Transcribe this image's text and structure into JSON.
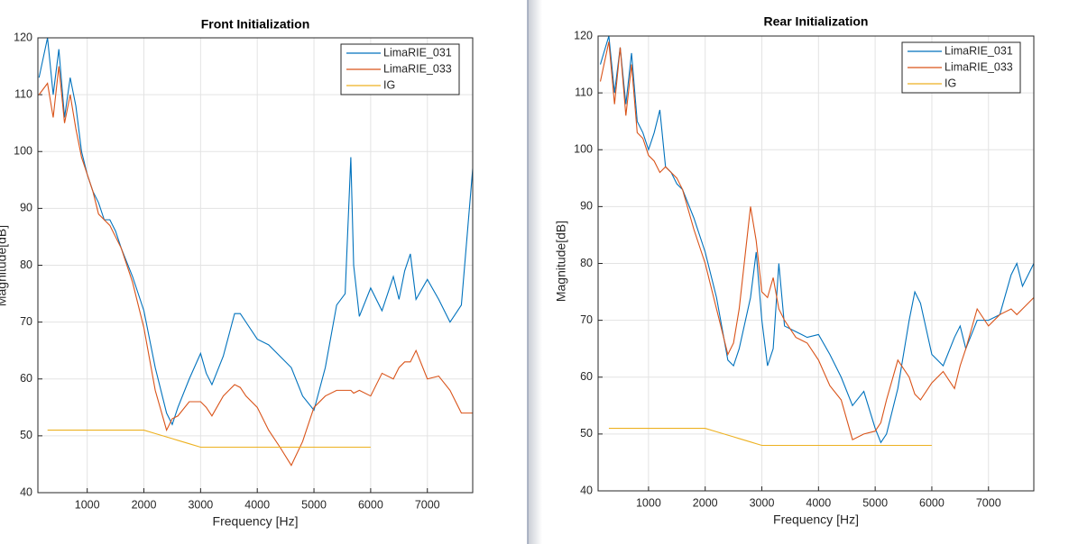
{
  "chart_data": [
    {
      "type": "line",
      "title": "Front Initialization",
      "x_label": "Frequency [Hz]",
      "y_label": "Magnitude[dB]",
      "x": [
        150,
        300,
        400,
        500,
        600,
        700,
        800,
        900,
        1000,
        1100,
        1200,
        1300,
        1400,
        1500,
        1600,
        1800,
        2000,
        2200,
        2400,
        2500,
        2600,
        2800,
        3000,
        3100,
        3200,
        3400,
        3600,
        3700,
        3800,
        4000,
        4200,
        4400,
        4600,
        4800,
        5000,
        5200,
        5400,
        5550,
        5650,
        5700,
        5800,
        6000,
        6200,
        6400,
        6500,
        6600,
        6700,
        6800,
        7000,
        7200,
        7400,
        7600,
        7800
      ],
      "series": [
        {
          "name": "LimaRIE_031",
          "color": "#0072bd",
          "values": [
            113,
            120,
            110,
            118,
            106,
            113,
            108,
            100,
            96,
            93,
            91,
            88,
            88,
            86,
            83,
            78,
            72,
            62,
            54,
            52,
            55,
            60,
            64.5,
            61,
            59,
            64,
            71.5,
            71.5,
            70,
            67,
            66,
            64,
            62,
            57,
            54.5,
            62,
            73,
            75,
            99,
            80,
            71,
            76,
            72,
            78,
            74,
            79,
            82,
            74,
            77.5,
            74,
            70,
            73,
            97
          ]
        },
        {
          "name": "LimaRIE_033",
          "color": "#d95319",
          "values": [
            110,
            112,
            106,
            115,
            105,
            110,
            104,
            99,
            96,
            93,
            89,
            88,
            87,
            85,
            83,
            77,
            69,
            58,
            51,
            53,
            53.5,
            56,
            56,
            55,
            53.5,
            57,
            59,
            58.5,
            57,
            55,
            51,
            48,
            44.8,
            49,
            55,
            57,
            58,
            58,
            58,
            57.5,
            58,
            57,
            61,
            60,
            62,
            63,
            63,
            65,
            60,
            60.5,
            58,
            54,
            54
          ]
        },
        {
          "name": "IG",
          "color": "#edb120",
          "values": [
            null,
            51,
            51,
            51,
            51,
            51,
            51,
            51,
            51,
            51,
            51,
            51,
            51,
            51,
            51,
            51,
            51,
            50.4,
            49.8,
            49.5,
            49.2,
            48.6,
            48,
            48,
            48,
            48,
            48,
            48,
            48,
            48,
            48,
            48,
            48,
            48,
            48,
            48,
            48,
            48,
            48,
            48,
            48,
            48,
            null,
            null,
            null,
            null,
            null,
            null,
            null,
            null,
            null,
            null,
            null
          ]
        }
      ],
      "xlim": [
        130,
        7800
      ],
      "xticks": [
        1000,
        2000,
        3000,
        4000,
        5000,
        6000,
        7000
      ],
      "ylim": [
        40,
        120
      ],
      "yticks": [
        40,
        50,
        60,
        70,
        80,
        90,
        100,
        110,
        120
      ],
      "grid": true,
      "legend": "northeast"
    },
    {
      "type": "line",
      "title": "Rear Initialization",
      "x_label": "Frequency [Hz]",
      "y_label": "Magnitude[dB]",
      "x": [
        150,
        300,
        400,
        500,
        600,
        700,
        800,
        900,
        1000,
        1100,
        1200,
        1300,
        1400,
        1500,
        1600,
        1800,
        2000,
        2200,
        2400,
        2500,
        2600,
        2800,
        2900,
        3000,
        3100,
        3200,
        3300,
        3400,
        3600,
        3800,
        4000,
        4200,
        4400,
        4600,
        4800,
        5000,
        5100,
        5200,
        5400,
        5600,
        5700,
        5800,
        6000,
        6200,
        6400,
        6500,
        6600,
        6800,
        7000,
        7200,
        7400,
        7500,
        7600,
        7800
      ],
      "series": [
        {
          "name": "LimaRIE_031",
          "color": "#0072bd",
          "values": [
            115,
            120,
            110,
            118,
            108,
            117,
            105,
            103,
            100,
            103,
            107,
            97,
            96,
            94,
            93,
            88,
            82,
            74,
            63,
            62,
            65,
            74,
            82,
            70,
            62,
            65,
            80,
            69,
            68,
            67,
            67.5,
            64,
            60,
            55,
            57.5,
            51,
            48.5,
            50,
            58,
            70,
            75,
            73,
            64,
            62,
            67,
            69,
            65,
            70,
            70,
            71,
            78,
            80,
            76,
            80
          ]
        },
        {
          "name": "LimaRIE_033",
          "color": "#d95319",
          "values": [
            112,
            119,
            108,
            118,
            106,
            115,
            103,
            102,
            99,
            98,
            96,
            97,
            96,
            95,
            93,
            86,
            80,
            72,
            64,
            66,
            72,
            90,
            84,
            75,
            74,
            77.5,
            72,
            70,
            67,
            66,
            63,
            58.5,
            56,
            49,
            50,
            50.5,
            52,
            56,
            63,
            60,
            57,
            56,
            59,
            61,
            58,
            62,
            65,
            72,
            69,
            71,
            72,
            71,
            72,
            74
          ]
        },
        {
          "name": "IG",
          "color": "#edb120",
          "values": [
            null,
            51,
            51,
            51,
            51,
            51,
            51,
            51,
            51,
            51,
            51,
            51,
            51,
            51,
            51,
            51,
            51,
            50.4,
            49.8,
            49.5,
            49.2,
            48.6,
            48.3,
            48,
            48,
            48,
            48,
            48,
            48,
            48,
            48,
            48,
            48,
            48,
            48,
            48,
            48,
            48,
            48,
            48,
            48,
            48,
            48,
            null,
            null,
            null,
            null,
            null,
            null,
            null,
            null,
            null,
            null,
            null
          ]
        }
      ],
      "xlim": [
        110,
        7800
      ],
      "xticks": [
        1000,
        2000,
        3000,
        4000,
        5000,
        6000,
        7000
      ],
      "ylim": [
        40,
        120
      ],
      "yticks": [
        40,
        50,
        60,
        70,
        80,
        90,
        100,
        110,
        120
      ],
      "grid": true,
      "legend": "northeast"
    }
  ]
}
